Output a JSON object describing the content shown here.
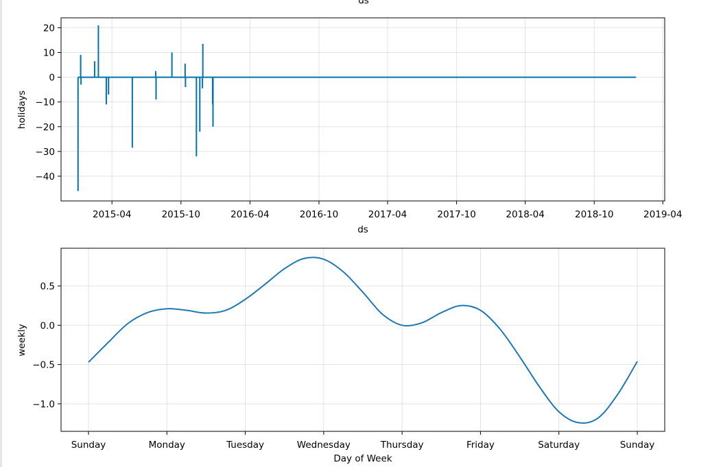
{
  "chart_data": [
    {
      "type": "line",
      "top_label": "ds",
      "xlabel": "ds",
      "ylabel": "holidays",
      "x_ticks": [
        "2015-04",
        "2015-10",
        "2016-04",
        "2016-10",
        "2017-04",
        "2017-10",
        "2018-04",
        "2018-10",
        "2019-04"
      ],
      "x_tick_dates": [
        "2015-04-01",
        "2015-10-01",
        "2016-04-01",
        "2016-10-01",
        "2017-04-01",
        "2017-10-01",
        "2018-04-01",
        "2018-10-01",
        "2019-04-01"
      ],
      "xlim": [
        "2014-11-17",
        "2019-04-06"
      ],
      "ylim": [
        -50,
        24
      ],
      "y_ticks": [
        20,
        10,
        0,
        -10,
        -20,
        -30,
        -40
      ],
      "y_tick_labels": [
        "20",
        "10",
        "0",
        "−10",
        "−20",
        "−30",
        "−40"
      ],
      "grid": true,
      "color": "#0072B2",
      "baseline_range": [
        "2015-01-01",
        "2019-01-20"
      ],
      "spikes": [
        {
          "x": "2015-01-01",
          "y": -46
        },
        {
          "x": "2015-01-08",
          "y": 9
        },
        {
          "x": "2015-01-09",
          "y": -3
        },
        {
          "x": "2015-02-14",
          "y": 6.5
        },
        {
          "x": "2015-02-24",
          "y": 21
        },
        {
          "x": "2015-03-17",
          "y": -11
        },
        {
          "x": "2015-03-23",
          "y": -7
        },
        {
          "x": "2015-05-25",
          "y": -28.5
        },
        {
          "x": "2015-07-26",
          "y": 2.5
        },
        {
          "x": "2015-07-27",
          "y": -9
        },
        {
          "x": "2015-09-07",
          "y": 10
        },
        {
          "x": "2015-10-12",
          "y": 5.5
        },
        {
          "x": "2015-10-13",
          "y": -4
        },
        {
          "x": "2015-11-11",
          "y": -32
        },
        {
          "x": "2015-11-20",
          "y": -22
        },
        {
          "x": "2015-11-27",
          "y": -4.5
        },
        {
          "x": "2015-11-28",
          "y": 13.5
        },
        {
          "x": "2015-12-25",
          "y": -20
        },
        {
          "x": "2015-12-24",
          "y": -11
        }
      ]
    },
    {
      "type": "line",
      "xlabel": "Day of Week",
      "ylabel": "weekly",
      "x_ticks": [
        "Sunday",
        "Monday",
        "Tuesday",
        "Wednesday",
        "Thursday",
        "Friday",
        "Saturday",
        "Sunday"
      ],
      "x_tick_positions": [
        0,
        1,
        2,
        3,
        4,
        5,
        6,
        7
      ],
      "xlim": [
        -0.35,
        7.35
      ],
      "ylim": [
        -1.35,
        0.98
      ],
      "y_ticks": [
        0.5,
        0.0,
        -0.5,
        -1.0
      ],
      "y_tick_labels": [
        "0.5",
        "0.0",
        "−0.5",
        "−1.0"
      ],
      "grid": true,
      "color": "#1f77b4",
      "points": [
        [
          0.0,
          -0.47
        ],
        [
          0.25,
          -0.22
        ],
        [
          0.5,
          0.02
        ],
        [
          0.75,
          0.16
        ],
        [
          1.0,
          0.21
        ],
        [
          1.25,
          0.19
        ],
        [
          1.5,
          0.155
        ],
        [
          1.75,
          0.19
        ],
        [
          2.0,
          0.33
        ],
        [
          2.25,
          0.52
        ],
        [
          2.5,
          0.72
        ],
        [
          2.75,
          0.85
        ],
        [
          3.0,
          0.84
        ],
        [
          3.25,
          0.68
        ],
        [
          3.5,
          0.42
        ],
        [
          3.75,
          0.14
        ],
        [
          4.0,
          0.0
        ],
        [
          4.25,
          0.03
        ],
        [
          4.5,
          0.16
        ],
        [
          4.75,
          0.25
        ],
        [
          5.0,
          0.19
        ],
        [
          5.25,
          -0.05
        ],
        [
          5.5,
          -0.4
        ],
        [
          5.75,
          -0.78
        ],
        [
          6.0,
          -1.1
        ],
        [
          6.25,
          -1.24
        ],
        [
          6.5,
          -1.18
        ],
        [
          6.75,
          -0.88
        ],
        [
          7.0,
          -0.46
        ]
      ]
    }
  ]
}
